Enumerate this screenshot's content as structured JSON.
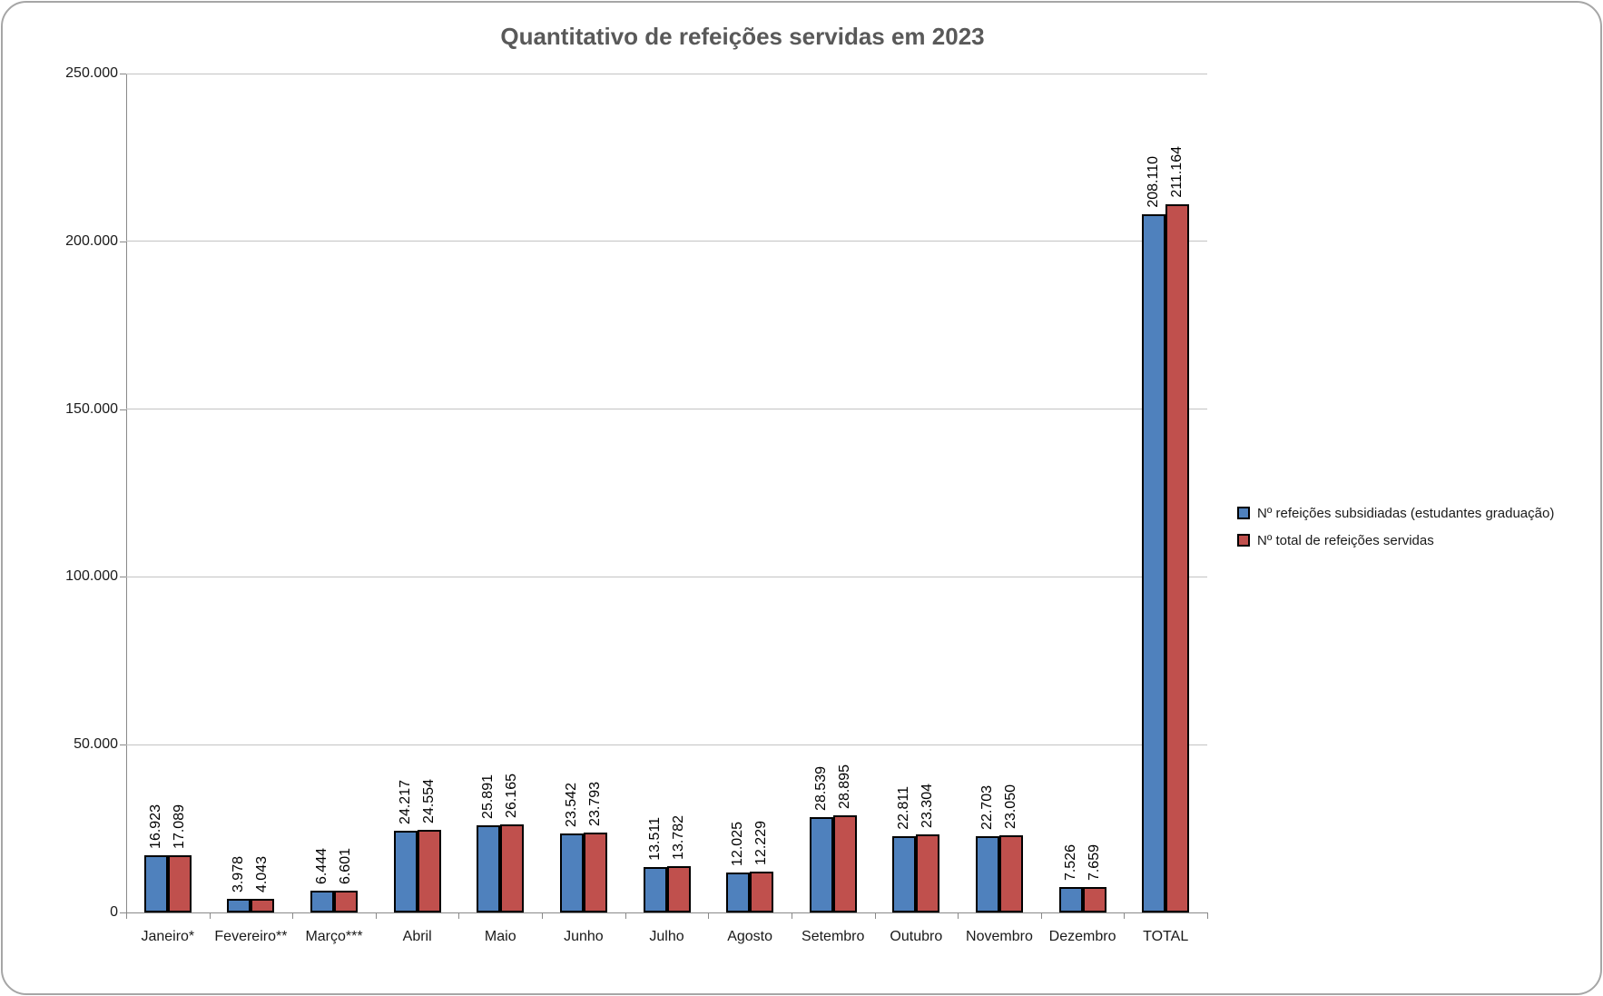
{
  "chart_data": {
    "type": "bar",
    "title": "Quantitativo de refeições servidas em 2023",
    "xlabel": "",
    "ylabel": "",
    "ylim": [
      0,
      250000
    ],
    "grid": true,
    "legend_position": "right",
    "categories": [
      "Janeiro*",
      "Fevereiro**",
      "Março***",
      "Abril",
      "Maio",
      "Junho",
      "Julho",
      "Agosto",
      "Setembro",
      "Outubro",
      "Novembro",
      "Dezembro",
      "TOTAL"
    ],
    "series": [
      {
        "name": "Nº refeições subsidiadas (estudantes graduação)",
        "color": "#4F81BD",
        "values": [
          16923,
          3978,
          6444,
          24217,
          25891,
          23542,
          13511,
          12025,
          28539,
          22811,
          22703,
          7526,
          208110
        ],
        "labels": [
          "16.923",
          "3.978",
          "6.444",
          "24.217",
          "25.891",
          "23.542",
          "13.511",
          "12.025",
          "28.539",
          "22.811",
          "22.703",
          "7.526",
          "208.110"
        ]
      },
      {
        "name": "Nº total de refeições servidas",
        "color": "#C0504D",
        "values": [
          17089,
          4043,
          6601,
          24554,
          26165,
          23793,
          13782,
          12229,
          28895,
          23304,
          23050,
          7659,
          211164
        ],
        "labels": [
          "17.089",
          "4.043",
          "6.601",
          "24.554",
          "26.165",
          "23.793",
          "13.782",
          "12.229",
          "28.895",
          "23.304",
          "23.050",
          "7.659",
          "211.164"
        ]
      }
    ],
    "y_ticks": [
      {
        "value": 0,
        "label": "0"
      },
      {
        "value": 50000,
        "label": "50.000"
      },
      {
        "value": 100000,
        "label": "100.000"
      },
      {
        "value": 150000,
        "label": "150.000"
      },
      {
        "value": 200000,
        "label": "200.000"
      },
      {
        "value": 250000,
        "label": "250.000"
      }
    ]
  }
}
